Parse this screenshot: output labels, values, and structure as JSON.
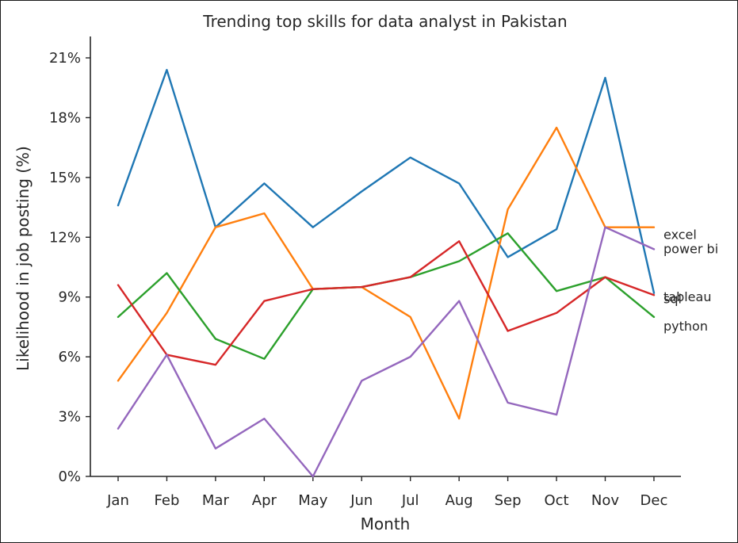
{
  "chart_data": {
    "type": "line",
    "title": "Trending top skills for data analyst in Pakistan",
    "xlabel": "Month",
    "ylabel": "Likelihood in job posting (%)",
    "categories": [
      "Jan",
      "Feb",
      "Mar",
      "Apr",
      "May",
      "Jun",
      "Jul",
      "Aug",
      "Sep",
      "Oct",
      "Nov",
      "Dec"
    ],
    "ylim": [
      0,
      22
    ],
    "yticks": [
      0,
      3,
      6,
      9,
      12,
      15,
      18,
      21
    ],
    "ytick_labels": [
      "0%",
      "3%",
      "6%",
      "9%",
      "12%",
      "15%",
      "18%",
      "21%"
    ],
    "grid": false,
    "series": [
      {
        "name": "sql",
        "color": "#1f77b4",
        "values": [
          13.6,
          20.4,
          12.5,
          14.7,
          12.5,
          14.3,
          16.0,
          14.7,
          11.0,
          12.4,
          20.0,
          9.2
        ]
      },
      {
        "name": "excel",
        "color": "#ff7f0e",
        "values": [
          4.8,
          8.2,
          12.5,
          13.2,
          9.4,
          9.5,
          8.0,
          2.9,
          13.4,
          17.5,
          12.5,
          12.5
        ]
      },
      {
        "name": "python",
        "color": "#2ca02c",
        "values": [
          8.0,
          10.2,
          6.9,
          5.9,
          9.4,
          9.5,
          10.0,
          10.8,
          12.2,
          9.3,
          10.0,
          8.0
        ]
      },
      {
        "name": "tableau",
        "color": "#d62728",
        "values": [
          9.6,
          6.1,
          5.6,
          8.8,
          9.4,
          9.5,
          10.0,
          11.8,
          7.3,
          8.2,
          10.0,
          9.1
        ]
      },
      {
        "name": "power bi",
        "color": "#9467bd",
        "values": [
          2.4,
          6.1,
          1.4,
          2.9,
          0.0,
          4.8,
          6.0,
          8.8,
          3.7,
          3.1,
          12.5,
          11.4
        ]
      }
    ],
    "end_labels": [
      {
        "series": "excel",
        "text": "excel"
      },
      {
        "series": "power bi",
        "text": "power bi"
      },
      {
        "series": "tableau",
        "text": "tableau"
      },
      {
        "series": "sql",
        "text": "sql"
      },
      {
        "series": "python",
        "text": "python"
      }
    ]
  }
}
